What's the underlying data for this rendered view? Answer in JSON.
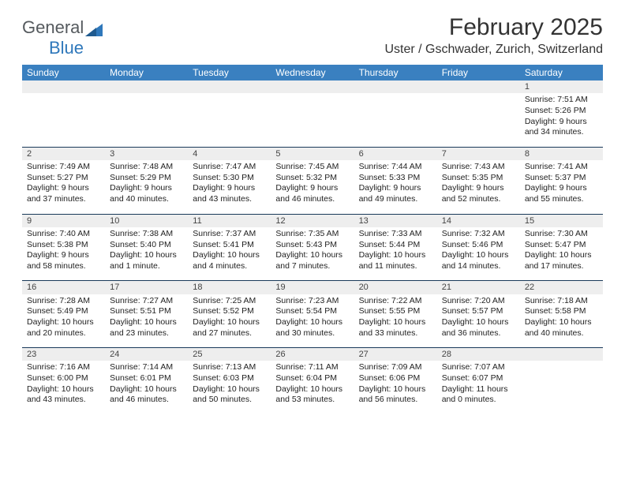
{
  "brand": {
    "part1": "General",
    "part2": "Blue",
    "accent_color": "#2f78bb",
    "text_color": "#555a5e"
  },
  "title": "February 2025",
  "location": "Uster / Gschwader, Zurich, Switzerland",
  "colors": {
    "header_bg": "#3a80c0",
    "header_text": "#ffffff",
    "daynum_bg": "#eeeeee",
    "border": "#1a3a5a",
    "body_text": "#222222",
    "background": "#ffffff"
  },
  "day_headers": [
    "Sunday",
    "Monday",
    "Tuesday",
    "Wednesday",
    "Thursday",
    "Friday",
    "Saturday"
  ],
  "weeks": [
    [
      null,
      null,
      null,
      null,
      null,
      null,
      {
        "n": "1",
        "sunrise": "7:51 AM",
        "sunset": "5:26 PM",
        "daylight": "9 hours and 34 minutes."
      }
    ],
    [
      {
        "n": "2",
        "sunrise": "7:49 AM",
        "sunset": "5:27 PM",
        "daylight": "9 hours and 37 minutes."
      },
      {
        "n": "3",
        "sunrise": "7:48 AM",
        "sunset": "5:29 PM",
        "daylight": "9 hours and 40 minutes."
      },
      {
        "n": "4",
        "sunrise": "7:47 AM",
        "sunset": "5:30 PM",
        "daylight": "9 hours and 43 minutes."
      },
      {
        "n": "5",
        "sunrise": "7:45 AM",
        "sunset": "5:32 PM",
        "daylight": "9 hours and 46 minutes."
      },
      {
        "n": "6",
        "sunrise": "7:44 AM",
        "sunset": "5:33 PM",
        "daylight": "9 hours and 49 minutes."
      },
      {
        "n": "7",
        "sunrise": "7:43 AM",
        "sunset": "5:35 PM",
        "daylight": "9 hours and 52 minutes."
      },
      {
        "n": "8",
        "sunrise": "7:41 AM",
        "sunset": "5:37 PM",
        "daylight": "9 hours and 55 minutes."
      }
    ],
    [
      {
        "n": "9",
        "sunrise": "7:40 AM",
        "sunset": "5:38 PM",
        "daylight": "9 hours and 58 minutes."
      },
      {
        "n": "10",
        "sunrise": "7:38 AM",
        "sunset": "5:40 PM",
        "daylight": "10 hours and 1 minute."
      },
      {
        "n": "11",
        "sunrise": "7:37 AM",
        "sunset": "5:41 PM",
        "daylight": "10 hours and 4 minutes."
      },
      {
        "n": "12",
        "sunrise": "7:35 AM",
        "sunset": "5:43 PM",
        "daylight": "10 hours and 7 minutes."
      },
      {
        "n": "13",
        "sunrise": "7:33 AM",
        "sunset": "5:44 PM",
        "daylight": "10 hours and 11 minutes."
      },
      {
        "n": "14",
        "sunrise": "7:32 AM",
        "sunset": "5:46 PM",
        "daylight": "10 hours and 14 minutes."
      },
      {
        "n": "15",
        "sunrise": "7:30 AM",
        "sunset": "5:47 PM",
        "daylight": "10 hours and 17 minutes."
      }
    ],
    [
      {
        "n": "16",
        "sunrise": "7:28 AM",
        "sunset": "5:49 PM",
        "daylight": "10 hours and 20 minutes."
      },
      {
        "n": "17",
        "sunrise": "7:27 AM",
        "sunset": "5:51 PM",
        "daylight": "10 hours and 23 minutes."
      },
      {
        "n": "18",
        "sunrise": "7:25 AM",
        "sunset": "5:52 PM",
        "daylight": "10 hours and 27 minutes."
      },
      {
        "n": "19",
        "sunrise": "7:23 AM",
        "sunset": "5:54 PM",
        "daylight": "10 hours and 30 minutes."
      },
      {
        "n": "20",
        "sunrise": "7:22 AM",
        "sunset": "5:55 PM",
        "daylight": "10 hours and 33 minutes."
      },
      {
        "n": "21",
        "sunrise": "7:20 AM",
        "sunset": "5:57 PM",
        "daylight": "10 hours and 36 minutes."
      },
      {
        "n": "22",
        "sunrise": "7:18 AM",
        "sunset": "5:58 PM",
        "daylight": "10 hours and 40 minutes."
      }
    ],
    [
      {
        "n": "23",
        "sunrise": "7:16 AM",
        "sunset": "6:00 PM",
        "daylight": "10 hours and 43 minutes."
      },
      {
        "n": "24",
        "sunrise": "7:14 AM",
        "sunset": "6:01 PM",
        "daylight": "10 hours and 46 minutes."
      },
      {
        "n": "25",
        "sunrise": "7:13 AM",
        "sunset": "6:03 PM",
        "daylight": "10 hours and 50 minutes."
      },
      {
        "n": "26",
        "sunrise": "7:11 AM",
        "sunset": "6:04 PM",
        "daylight": "10 hours and 53 minutes."
      },
      {
        "n": "27",
        "sunrise": "7:09 AM",
        "sunset": "6:06 PM",
        "daylight": "10 hours and 56 minutes."
      },
      {
        "n": "28",
        "sunrise": "7:07 AM",
        "sunset": "6:07 PM",
        "daylight": "11 hours and 0 minutes."
      },
      null
    ]
  ],
  "labels": {
    "sunrise": "Sunrise:",
    "sunset": "Sunset:",
    "daylight": "Daylight:"
  }
}
